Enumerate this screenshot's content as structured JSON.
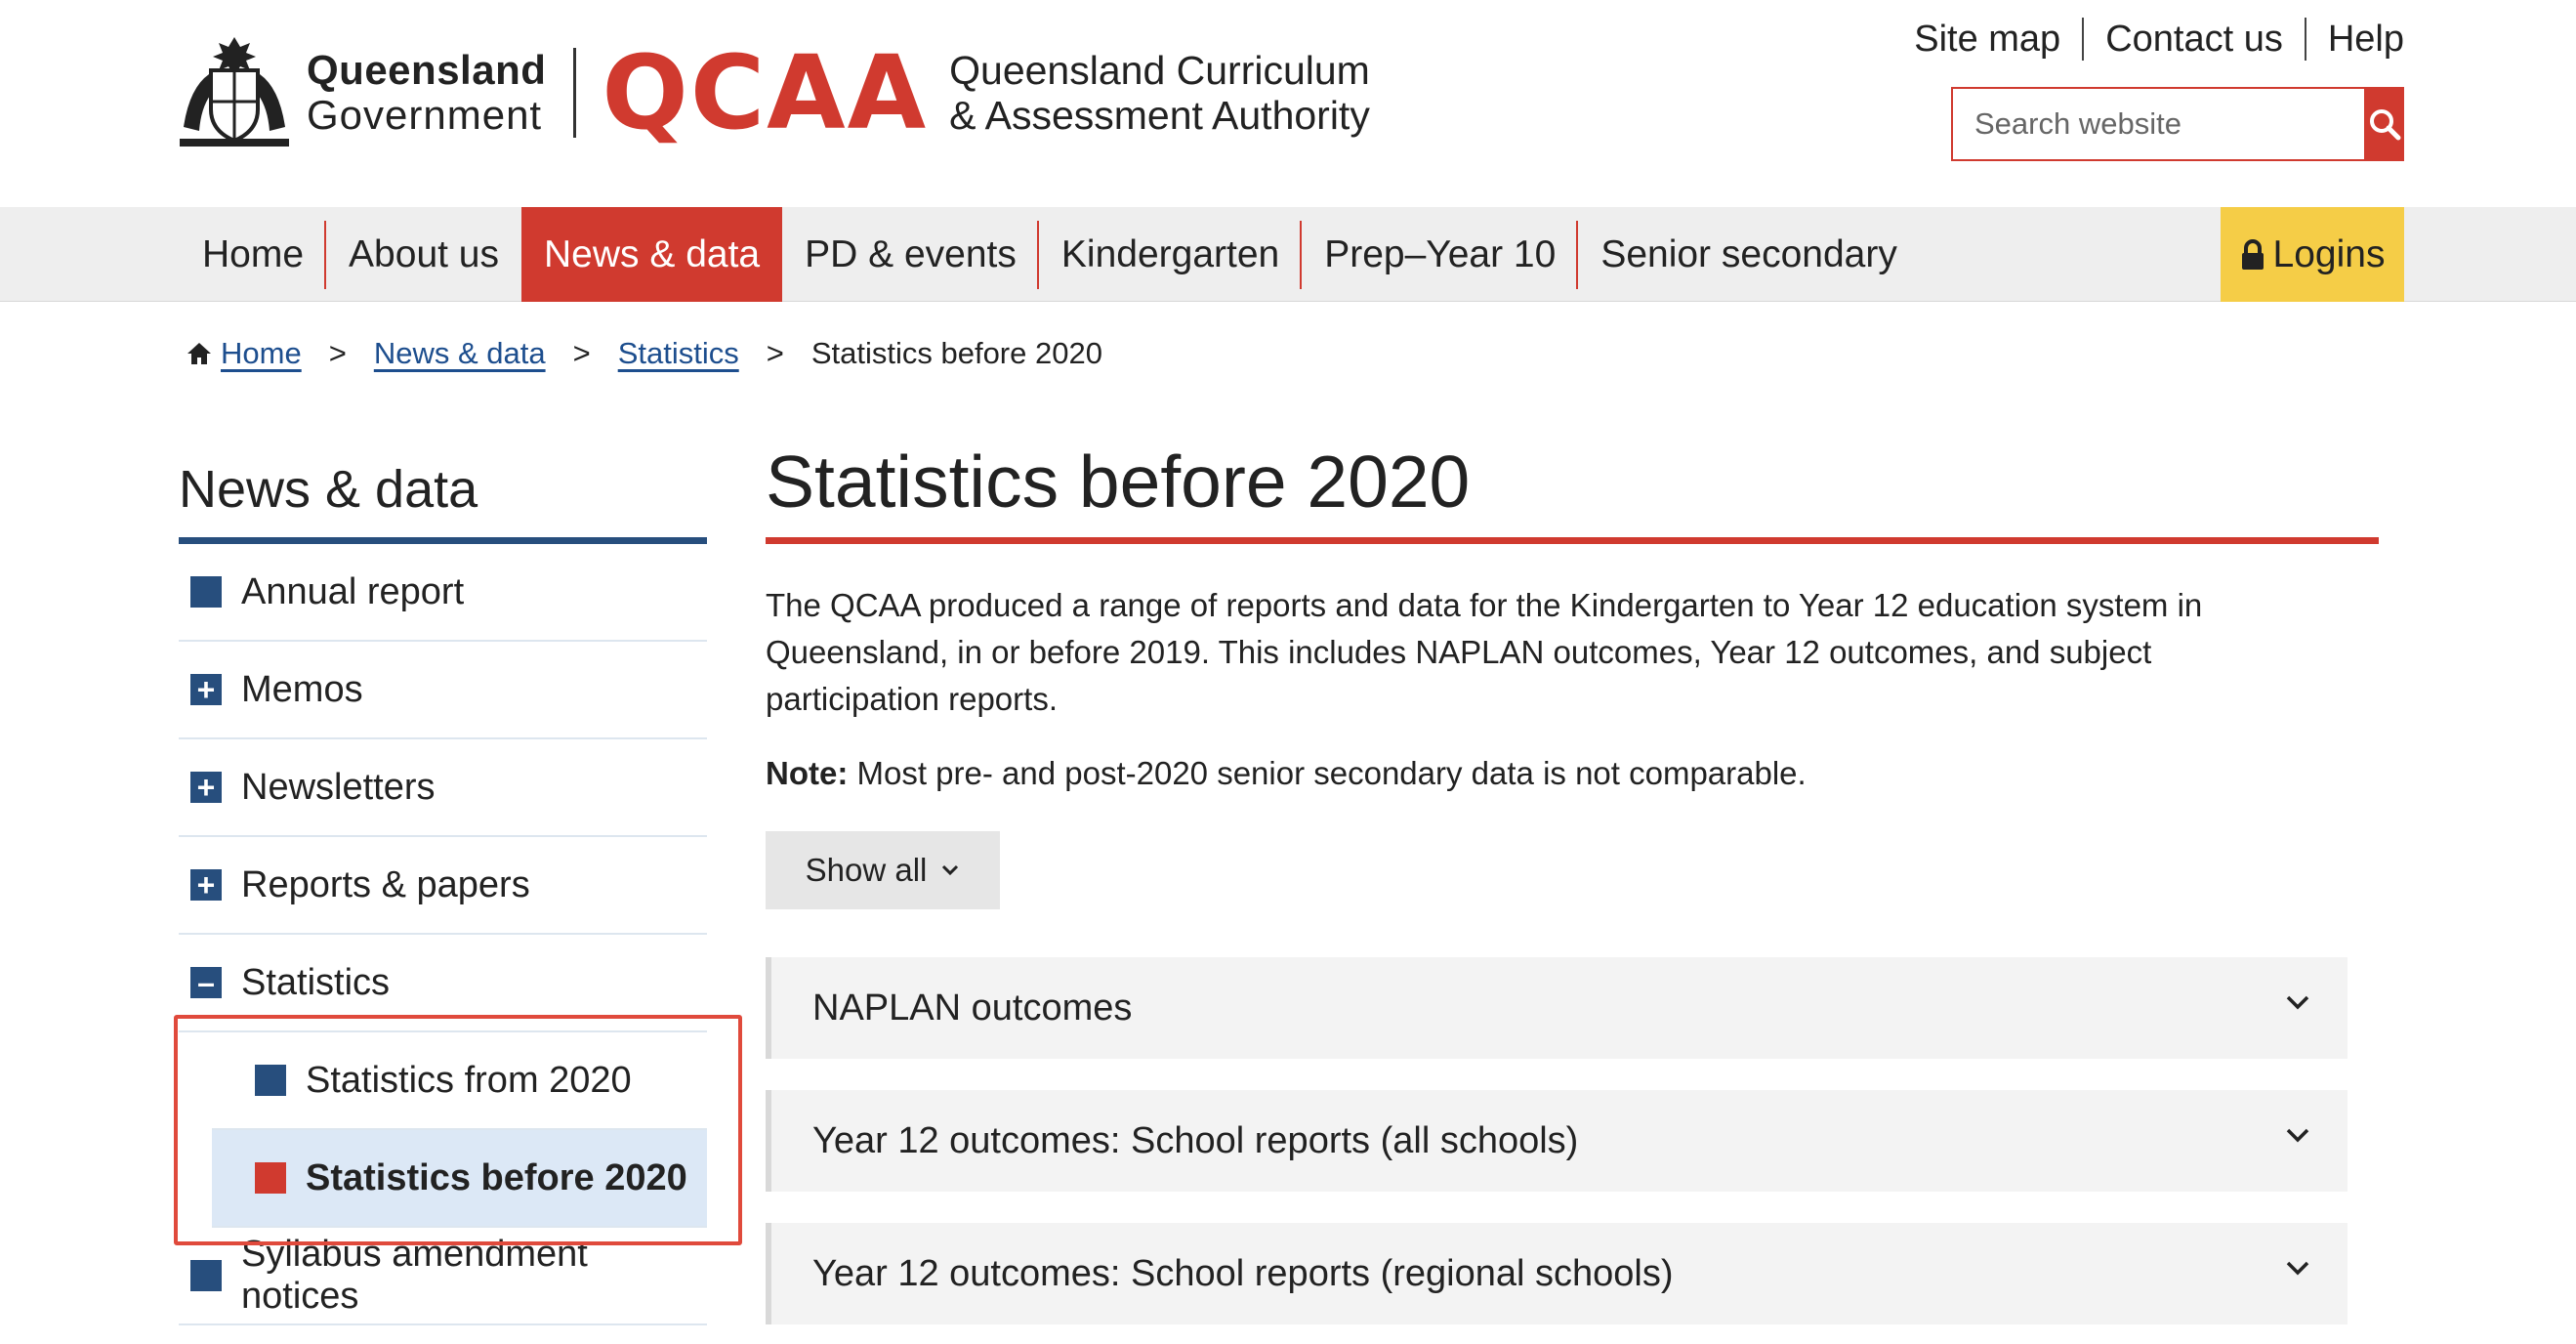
{
  "header": {
    "gov_line1": "Queensland",
    "gov_line2": "Government",
    "qcaa_word": "QCAA",
    "qcaa_line1": "Queensland Curriculum",
    "qcaa_line2": "& Assessment Authority",
    "util_links": [
      "Site map",
      "Contact us",
      "Help"
    ],
    "search_placeholder": "Search website",
    "search_icon": "magnifier-icon"
  },
  "nav": {
    "items": [
      "Home",
      "About us",
      "News & data",
      "PD & events",
      "Kindergarten",
      "Prep–Year 10",
      "Senior secondary"
    ],
    "active": "News & data",
    "logins_label": "Logins",
    "logins_icon": "lock-icon"
  },
  "breadcrumb": {
    "items": [
      "Home",
      "News & data",
      "Statistics"
    ],
    "current": "Statistics before 2020",
    "separator": ">"
  },
  "sidebar": {
    "title": "News & data",
    "items": [
      {
        "label": "Annual report",
        "marker": "square"
      },
      {
        "label": "Memos",
        "marker": "plus"
      },
      {
        "label": "Newsletters",
        "marker": "plus"
      },
      {
        "label": "Reports & papers",
        "marker": "plus"
      },
      {
        "label": "Statistics",
        "marker": "minus"
      },
      {
        "label": "Statistics from 2020",
        "marker": "square"
      },
      {
        "label": "Statistics before 2020",
        "marker": "square"
      },
      {
        "label": "Syllabus amendment notices",
        "marker": "square"
      }
    ]
  },
  "content": {
    "title": "Statistics before 2020",
    "intro_lines": [
      "The QCAA produced a range of reports and data for the Kindergarten to Year 12 education system in",
      "Queensland, in or before 2019. This includes NAPLAN outcomes, Year 12 outcomes, and subject",
      "participation reports."
    ],
    "note_label": "Note:",
    "note_text": " Most pre- and post-2020 senior secondary data is not comparable.",
    "show_all_label": "Show all",
    "accordions": [
      "NAPLAN outcomes",
      "Year 12 outcomes: School reports (all schools)",
      "Year 12 outcomes: School reports (regional schools)"
    ]
  },
  "colors": {
    "brand_red": "#d03a2f",
    "navy": "#274e7d",
    "logins_yellow": "#f5cd47",
    "current_bg": "#dce8f6"
  }
}
